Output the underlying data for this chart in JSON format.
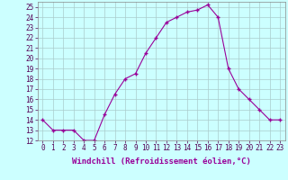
{
  "x": [
    0,
    1,
    2,
    3,
    4,
    5,
    6,
    7,
    8,
    9,
    10,
    11,
    12,
    13,
    14,
    15,
    16,
    17,
    18,
    19,
    20,
    21,
    22,
    23
  ],
  "y": [
    14,
    13,
    13,
    13,
    12,
    12,
    14.5,
    16.5,
    18,
    18.5,
    20.5,
    22,
    23.5,
    24,
    24.5,
    24.7,
    25.2,
    24,
    19,
    17,
    16,
    15,
    14,
    14
  ],
  "line_color": "#990099",
  "marker_color": "#990099",
  "bg_color": "#ccffff",
  "grid_color": "#aacccc",
  "xlabel": "Windchill (Refroidissement éolien,°C)",
  "ylim": [
    12,
    25.5
  ],
  "xlim": [
    -0.5,
    23.5
  ],
  "yticks": [
    12,
    13,
    14,
    15,
    16,
    17,
    18,
    19,
    20,
    21,
    22,
    23,
    24,
    25
  ],
  "xticks": [
    0,
    1,
    2,
    3,
    4,
    5,
    6,
    7,
    8,
    9,
    10,
    11,
    12,
    13,
    14,
    15,
    16,
    17,
    18,
    19,
    20,
    21,
    22,
    23
  ],
  "xlabel_fontsize": 6.5,
  "tick_fontsize": 5.5
}
